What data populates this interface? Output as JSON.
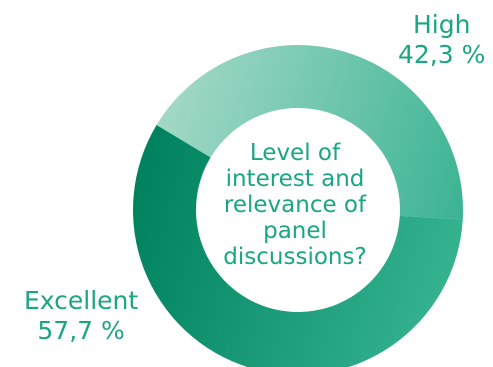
{
  "chart_data": {
    "type": "pie",
    "variant": "donut",
    "center_text": "Level of interest and relevance of panel discussions?",
    "slices": [
      {
        "label": "High",
        "value": 42.3,
        "display": "42,3 %",
        "gradient": [
          "#a3d9c6",
          "#3bb393"
        ]
      },
      {
        "label": "Excellent",
        "value": 57.7,
        "display": "57,7 %",
        "gradient": [
          "#34b28f",
          "#00825e"
        ]
      }
    ],
    "text_color": "#1aa683",
    "start_angle_deg": 301
  }
}
